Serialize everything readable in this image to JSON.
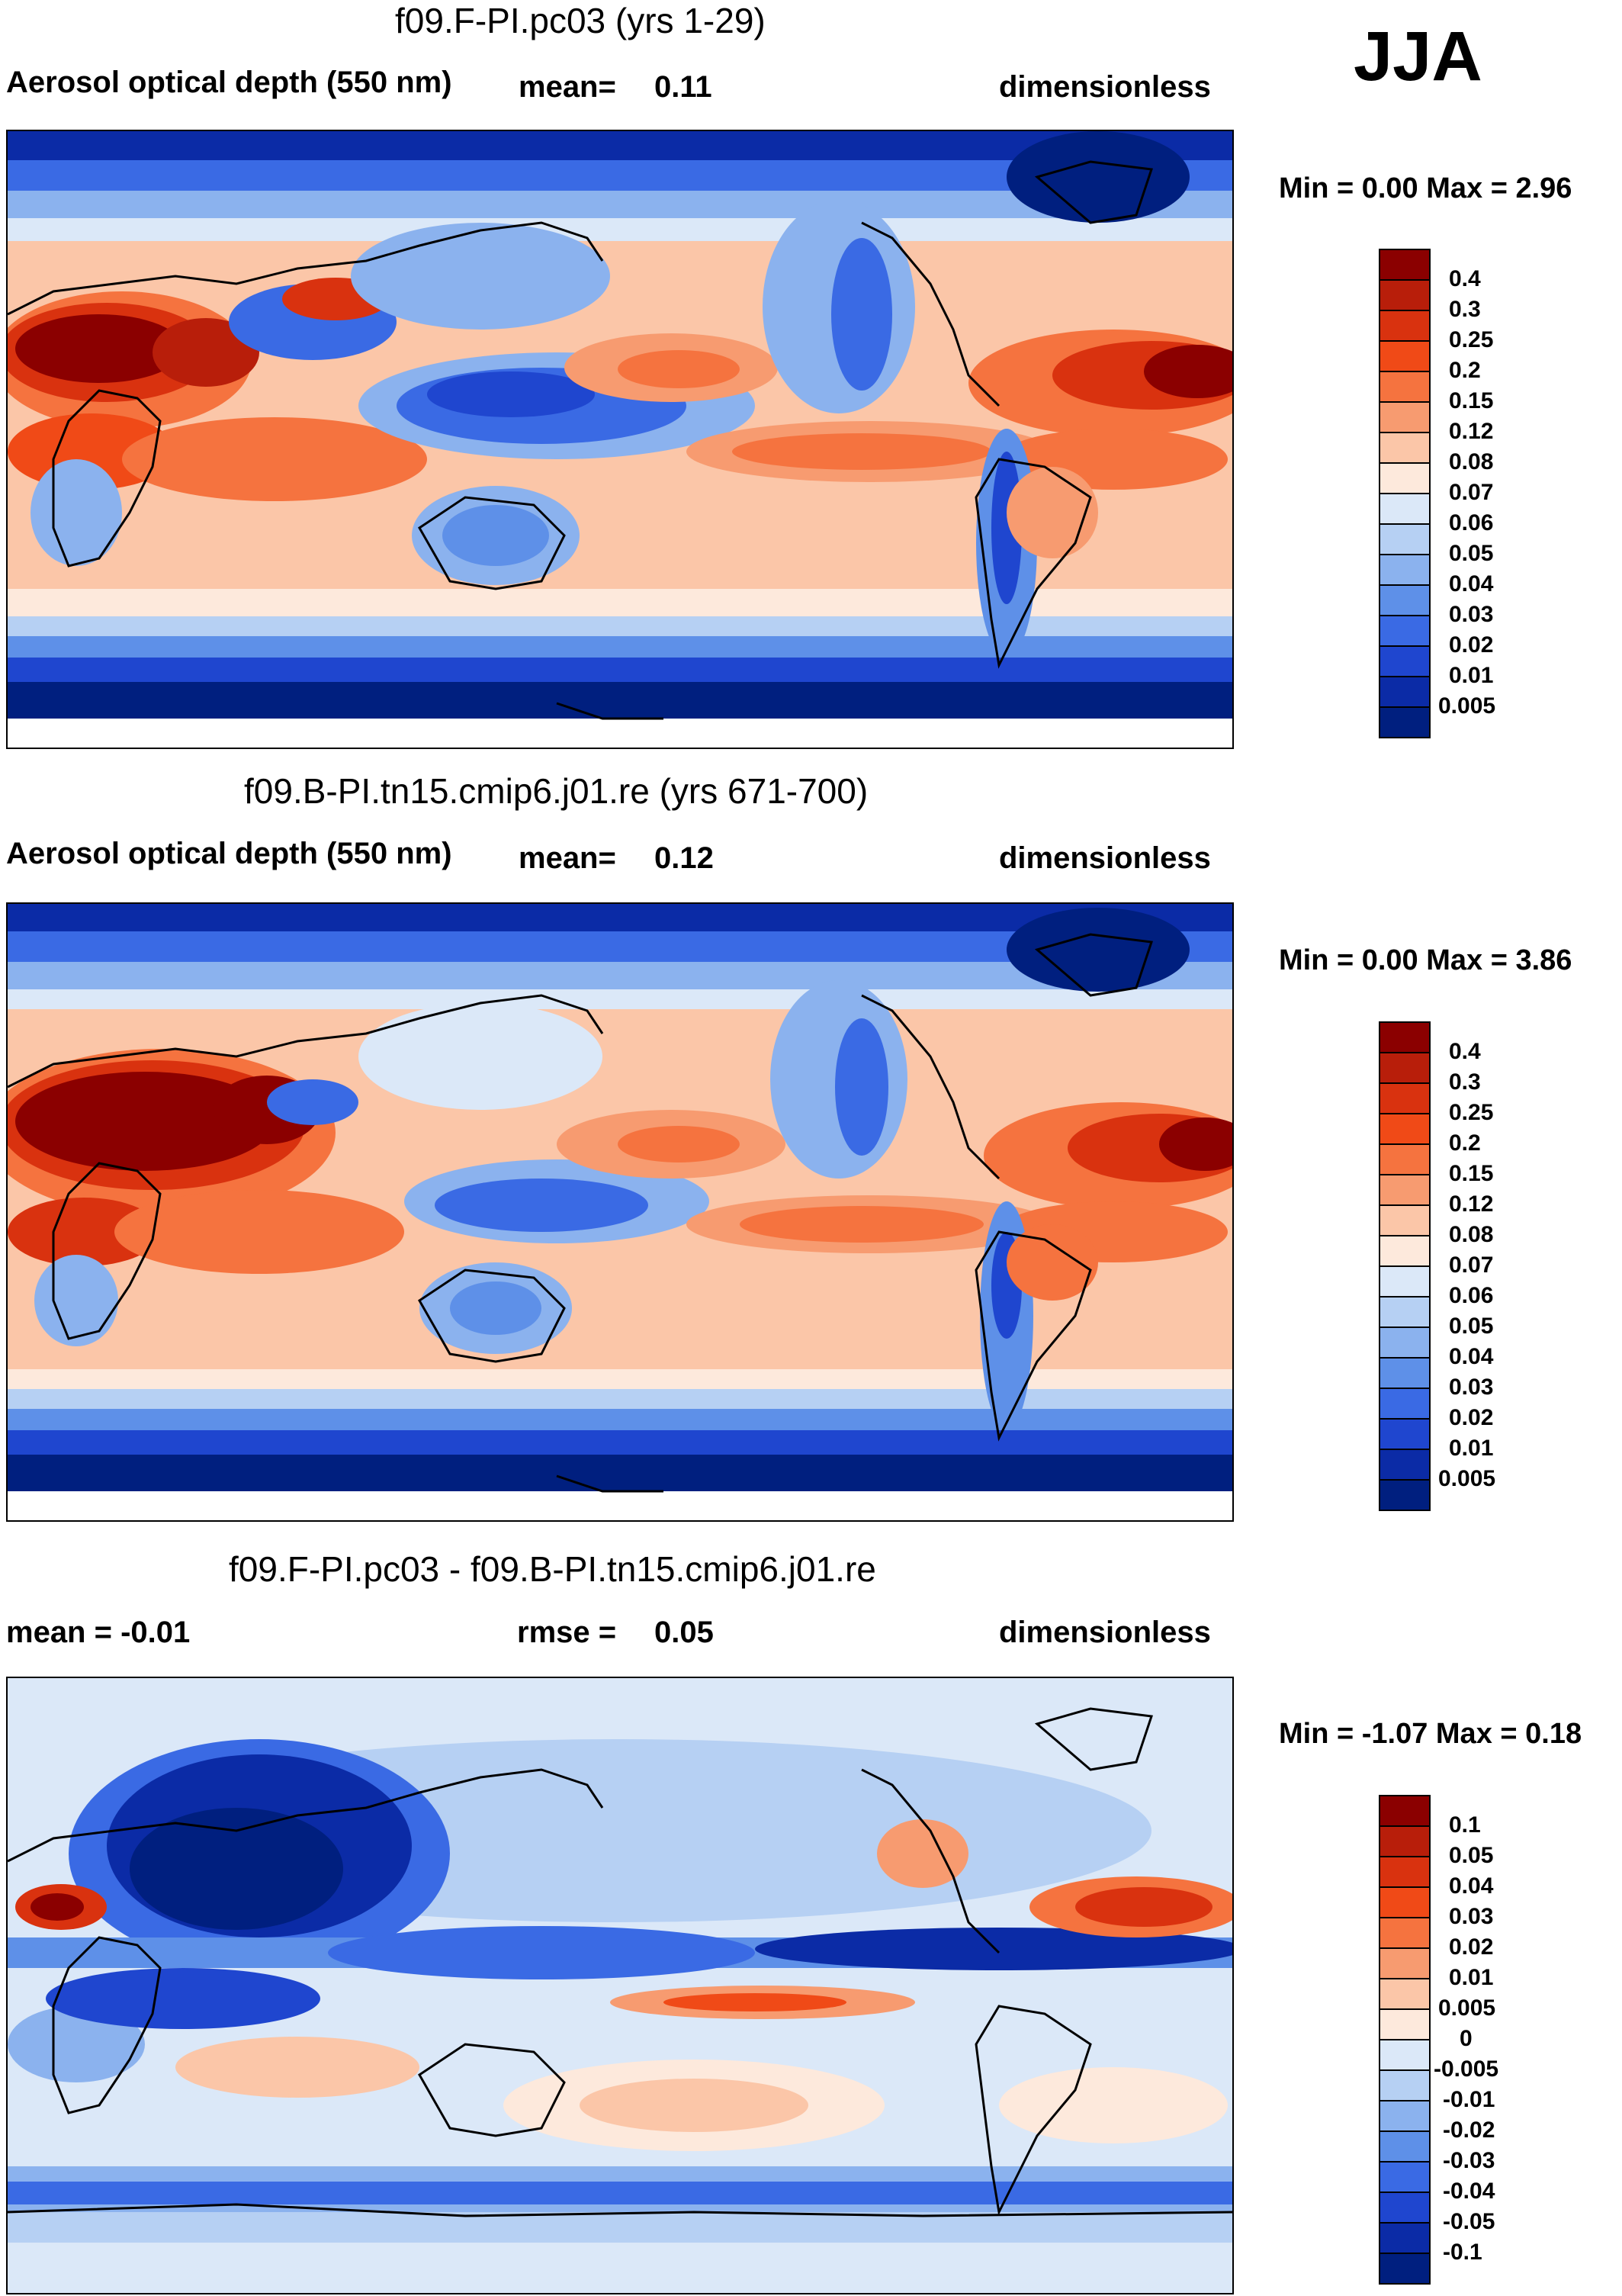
{
  "season": "JJA",
  "panels": [
    {
      "id": "p1",
      "title": "f09.F-PI.pc03 (yrs 1-29)",
      "left_label": "Aerosol optical depth (550 nm)",
      "mid_label": "mean=",
      "mid_value": "0.11",
      "right_label": "dimensionless",
      "min_max": "Min =   0.00 Max =   2.96",
      "colorbar": {
        "labels": [
          "0.4",
          "0.3",
          "0.25",
          "0.2",
          "0.15",
          "0.12",
          "0.08",
          "0.07",
          "0.06",
          "0.05",
          "0.04",
          "0.03",
          "0.02",
          "0.01",
          "0.005"
        ],
        "colors": [
          "#8b0000",
          "#b81e0a",
          "#d9320f",
          "#f04a17",
          "#f5733f",
          "#f79b70",
          "#fbc6a8",
          "#fde9dc",
          "#dbe8f8",
          "#b6d0f3",
          "#8bb2ee",
          "#5e90e8",
          "#3a6ae4",
          "#1f46cf",
          "#0b2ba6",
          "#001f7f"
        ]
      }
    },
    {
      "id": "p2",
      "title": "f09.B-PI.tn15.cmip6.j01.re (yrs 671-700)",
      "left_label": "Aerosol optical depth (550 nm)",
      "mid_label": "mean=",
      "mid_value": "0.12",
      "right_label": "dimensionless",
      "min_max": "Min =   0.00 Max =   3.86",
      "colorbar": {
        "labels": [
          "0.4",
          "0.3",
          "0.25",
          "0.2",
          "0.15",
          "0.12",
          "0.08",
          "0.07",
          "0.06",
          "0.05",
          "0.04",
          "0.03",
          "0.02",
          "0.01",
          "0.005"
        ],
        "colors": [
          "#8b0000",
          "#b81e0a",
          "#d9320f",
          "#f04a17",
          "#f5733f",
          "#f79b70",
          "#fbc6a8",
          "#fde9dc",
          "#dbe8f8",
          "#b6d0f3",
          "#8bb2ee",
          "#5e90e8",
          "#3a6ae4",
          "#1f46cf",
          "#0b2ba6",
          "#001f7f"
        ]
      }
    },
    {
      "id": "p3",
      "title": "f09.F-PI.pc03 - f09.B-PI.tn15.cmip6.j01.re",
      "left_label": "mean =  -0.01",
      "mid_label": "rmse =",
      "mid_value": "0.05",
      "right_label": "dimensionless",
      "min_max": "Min =  -1.07 Max =   0.18",
      "colorbar": {
        "labels": [
          "0.1",
          "0.05",
          "0.04",
          "0.03",
          "0.02",
          "0.01",
          "0.005",
          "0",
          "-0.005",
          "-0.01",
          "-0.02",
          "-0.03",
          "-0.04",
          "-0.05",
          "-0.1"
        ],
        "colors": [
          "#8b0000",
          "#b81e0a",
          "#d9320f",
          "#f04a17",
          "#f5733f",
          "#f79b70",
          "#fbc6a8",
          "#fde9dc",
          "#dbe8f8",
          "#b6d0f3",
          "#8bb2ee",
          "#5e90e8",
          "#3a6ae4",
          "#1f46cf",
          "#0b2ba6",
          "#001f7f"
        ]
      }
    }
  ]
}
